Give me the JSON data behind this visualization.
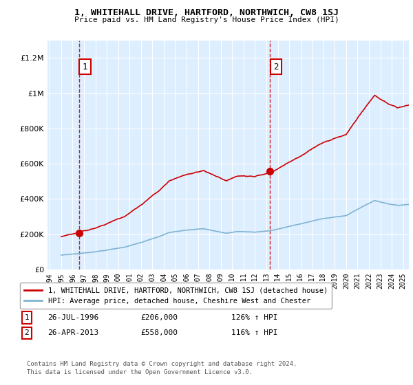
{
  "title": "1, WHITEHALL DRIVE, HARTFORD, NORTHWICH, CW8 1SJ",
  "subtitle": "Price paid vs. HM Land Registry's House Price Index (HPI)",
  "sale1_date": 1996.57,
  "sale1_price": 206000,
  "sale1_label": "1",
  "sale2_date": 2013.32,
  "sale2_price": 558000,
  "sale2_label": "2",
  "legend_entry1": "1, WHITEHALL DRIVE, HARTFORD, NORTHWICH, CW8 1SJ (detached house)",
  "legend_entry2": "HPI: Average price, detached house, Cheshire West and Chester",
  "footer": "Contains HM Land Registry data © Crown copyright and database right 2024.\nThis data is licensed under the Open Government Licence v3.0.",
  "red_color": "#cc0000",
  "blue_color": "#7fb3d3",
  "dashed_red": "#cc0000",
  "plot_bg": "#ddeeff",
  "xlim_left": 1993.8,
  "xlim_right": 2025.5,
  "ylim_bottom": 0,
  "ylim_top": 1300000,
  "yticks": [
    0,
    200000,
    400000,
    600000,
    800000,
    1000000,
    1200000
  ]
}
